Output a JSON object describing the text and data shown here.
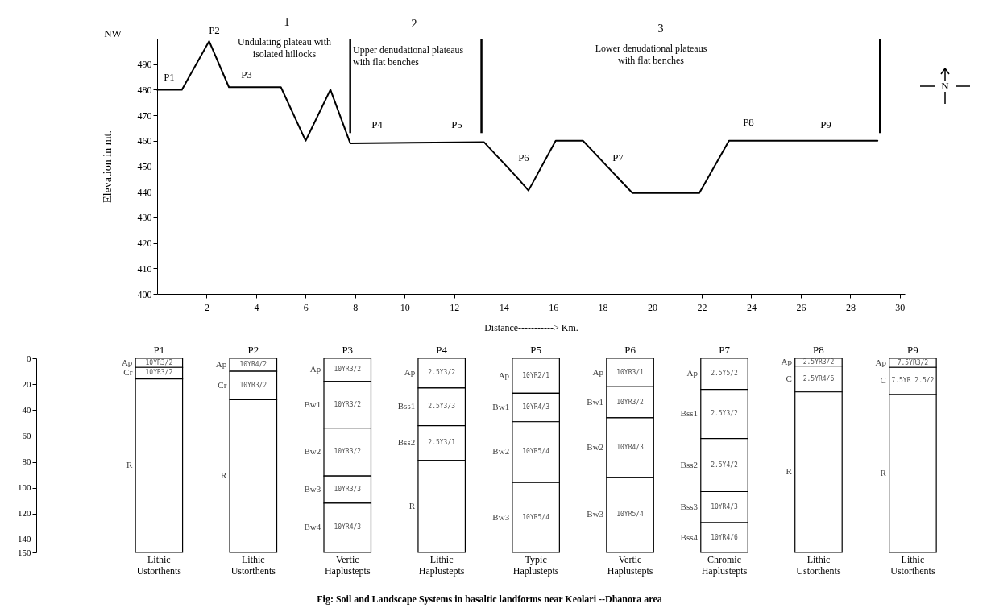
{
  "chart_data": [
    {
      "type": "line",
      "xlabel": "Distance-----------> Km.",
      "ylabel": "Elevation in mt.",
      "series": [
        {
          "color": "#000000",
          "x": [
            0,
            1,
            2.1,
            2.9,
            5,
            6,
            7,
            7.8,
            13.2,
            14.6,
            15,
            16.1,
            17.2,
            19.2,
            21.9,
            23.1,
            29.1
          ],
          "values": [
            480,
            480,
            499,
            481,
            481,
            460,
            480,
            459,
            459.5,
            445,
            440.5,
            460,
            460,
            439.5,
            439.5,
            460,
            460
          ]
        }
      ],
      "xlim": [
        0,
        30.2
      ],
      "xticks": [
        2,
        4,
        6,
        8,
        10,
        12,
        14,
        16,
        18,
        20,
        22,
        24,
        26,
        28,
        30
      ],
      "ylim": [
        400,
        500
      ],
      "yticks": [
        400,
        410,
        420,
        430,
        440,
        450,
        460,
        470,
        480,
        490
      ],
      "ref_lines": [
        {
          "axis": "x",
          "value": 7.8
        },
        {
          "axis": "x",
          "value": 13.1
        },
        {
          "axis": "x",
          "value": 29.2
        }
      ],
      "annotations": [
        "NW",
        "1",
        "Undulating plateau with isolated hillocks",
        "2",
        "Upper denudational plateaus with flat benches",
        "3",
        "Lower denudational plateaus with flat benches",
        "N",
        "P1",
        "P2",
        "P3",
        "P4",
        "P5",
        "P6",
        "P7",
        "P8",
        "P9"
      ]
    },
    {
      "type": "bar",
      "stacked": true,
      "title": "Fig: Soil and Landscape Systems in basaltic landforms near Keolari --Dhanora area",
      "categories": [
        "P1",
        "P2",
        "P3",
        "P4",
        "P5",
        "P6",
        "P7",
        "P8",
        "P9"
      ],
      "series": [
        {
          "color": "#ffffff",
          "values": [
            7,
            10,
            18,
            23,
            27,
            22,
            24,
            6,
            7
          ]
        },
        {
          "color": "#ffffff",
          "values": [
            9,
            22,
            36,
            29,
            22,
            24,
            38,
            20,
            21
          ]
        },
        {
          "color": "#ffffff",
          "values": [
            134,
            118,
            37,
            27,
            47,
            46,
            41,
            124,
            122
          ]
        },
        {
          "color": "#ffffff",
          "values": [
            null,
            null,
            21,
            71,
            54,
            58,
            24,
            null,
            null
          ]
        },
        {
          "color": "#ffffff",
          "values": [
            null,
            null,
            38,
            null,
            null,
            null,
            23,
            null,
            null
          ]
        }
      ],
      "ylim": [
        150,
        0
      ],
      "yticks": [
        0,
        20,
        40,
        60,
        80,
        100,
        120,
        140,
        150
      ],
      "annotations": [
        "Ap",
        "Cr",
        "R",
        "Ap",
        "Cr",
        "R",
        "Ap",
        "Bw1",
        "Bw2",
        "Bw3",
        "Bw4",
        "Ap",
        "Bss1",
        "Bss2",
        "R",
        "Ap",
        "Bw1",
        "Bw2",
        "Bw3",
        "Ap",
        "Bw1",
        "Bw2",
        "Bw3",
        "Ap",
        "Bss1",
        "Bss2",
        "Bss3",
        "Bss4",
        "Ap",
        "C",
        "R",
        "Ap",
        "C",
        "R",
        "10YR3/2",
        "10YR3/2",
        "10YR4/2",
        "10YR3/2",
        "10YR3/2",
        "10YR3/2",
        "10YR3/2",
        "10YR3/3",
        "10YR4/3",
        "2.5Y3/2",
        "2.5Y3/3",
        "2.5Y3/1",
        "10YR2/1",
        "10YR4/3",
        "10YR5/4",
        "10YR5/4",
        "10YR3/1",
        "10YR3/2",
        "10YR4/3",
        "10YR5/4",
        "2.5Y5/2",
        "2.5Y3/2",
        "2.5Y4/2",
        "10YR4/3",
        "10YR4/6",
        "2.5YR3/2",
        "2.5YR4/6",
        "7.5YR3/2",
        "7.5YR 2.5/2",
        "Lithic Ustorthents",
        "Lithic Ustorthents",
        "Vertic Haplustepts",
        "Lithic Haplustepts",
        "Typic Haplustepts",
        "Vertic Haplustepts",
        "Chromic Haplustepts",
        "Lithic Ustorthents",
        "Lithic Ustorthents"
      ]
    }
  ]
}
